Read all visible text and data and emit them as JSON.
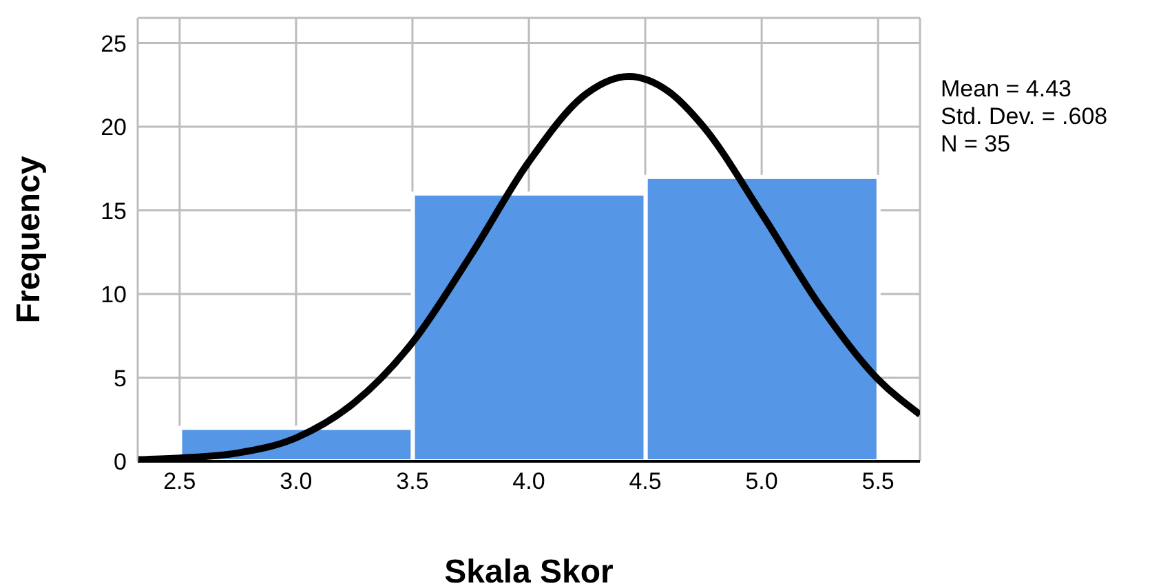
{
  "chart_data": {
    "type": "histogram",
    "xlabel": "Skala Skor",
    "ylabel": "Frequency",
    "bins": [
      2.5,
      3.5,
      4.5,
      5.5
    ],
    "values": [
      2,
      16,
      17
    ],
    "color": "#5596e6",
    "series": [
      {
        "type": "line",
        "color": "#000000",
        "x": [
          2.32,
          2.5,
          2.75,
          3.0,
          3.25,
          3.5,
          3.75,
          4.0,
          4.25,
          4.43,
          4.6,
          4.75,
          5.0,
          5.25,
          5.5,
          5.68
        ],
        "values": [
          0.1,
          0.2,
          0.5,
          1.4,
          3.5,
          7.1,
          12.3,
          17.9,
          22.0,
          23.0,
          22.1,
          20.0,
          14.8,
          9.3,
          4.9,
          2.8
        ]
      }
    ],
    "xlim": [
      2.32,
      5.68
    ],
    "xticks": [
      {
        "value": 2.5,
        "label": "2.5"
      },
      {
        "value": 3.0,
        "label": "3.0"
      },
      {
        "value": 3.5,
        "label": "3.5"
      },
      {
        "value": 4.0,
        "label": "4.0"
      },
      {
        "value": 4.5,
        "label": "4.5"
      },
      {
        "value": 5.0,
        "label": "5.0"
      },
      {
        "value": 5.5,
        "label": "5.5"
      }
    ],
    "ylim": [
      0,
      26.5
    ],
    "yticks": [
      0,
      5,
      10,
      15,
      20,
      25
    ],
    "grid": true,
    "marker": "none",
    "line_style": "solid",
    "annotations": [
      "Mean = 4.43",
      "Std. Dev. = .608",
      "N = 35"
    ]
  }
}
